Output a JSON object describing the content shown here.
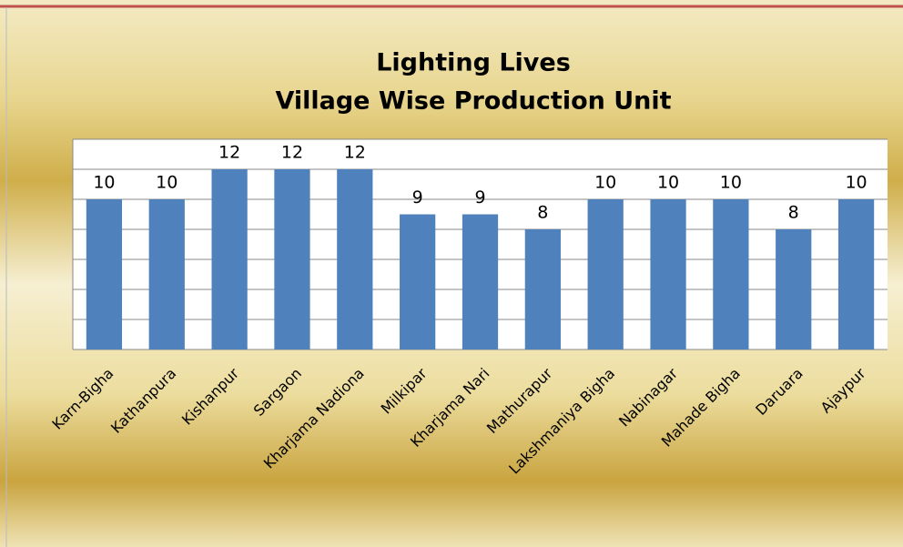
{
  "chart_data": {
    "type": "bar",
    "title": "Lighting Lives",
    "subtitle": "Village Wise Production Unit",
    "categories": [
      "Karn-Bigha",
      "Kathanpura",
      "Kishanpur",
      "Sargaon",
      "Kharjama Nadiona",
      "Milkipar",
      "Kharjama Nari",
      "Mathurapur",
      "Lakshmaniya Bigha",
      "Nabinagar",
      "Mahade Bigha",
      "Daruara",
      "Ajaypur"
    ],
    "values": [
      10,
      10,
      12,
      12,
      12,
      9,
      9,
      8,
      10,
      10,
      10,
      8,
      10
    ],
    "color": "#4f81bd",
    "ylim": [
      0,
      14
    ],
    "yticks": [
      0,
      2,
      4,
      6,
      8,
      10,
      12,
      14
    ],
    "grid": true
  }
}
